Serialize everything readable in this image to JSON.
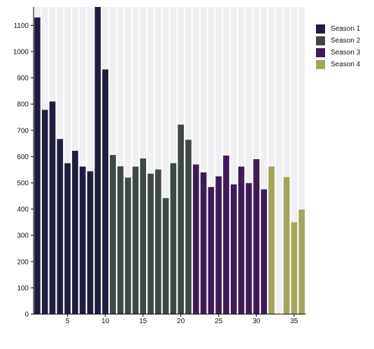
{
  "chart_data": {
    "type": "bar",
    "x": [
      1,
      2,
      3,
      4,
      5,
      6,
      7,
      8,
      9,
      10,
      11,
      12,
      13,
      14,
      15,
      16,
      17,
      18,
      19,
      20,
      21,
      22,
      23,
      24,
      25,
      26,
      27,
      28,
      29,
      30,
      31,
      32,
      33,
      34,
      35,
      36
    ],
    "series": [
      {
        "name": "Season 1",
        "color": "#1f1d40",
        "x": [
          1,
          2,
          3,
          4,
          5,
          6,
          7,
          8,
          9,
          10
        ],
        "values": [
          1130,
          778,
          810,
          667,
          575,
          622,
          562,
          544,
          1170,
          932
        ]
      },
      {
        "name": "Season 2",
        "color": "#3e4946",
        "x": [
          11,
          12,
          13,
          14,
          15,
          16,
          17,
          18,
          19,
          20,
          21
        ],
        "values": [
          606,
          563,
          520,
          562,
          593,
          535,
          551,
          442,
          575,
          722,
          664
        ]
      },
      {
        "name": "Season 3",
        "color": "#3e1b56",
        "x": [
          22,
          23,
          24,
          25,
          26,
          27,
          28,
          29,
          30,
          31
        ],
        "values": [
          570,
          540,
          484,
          525,
          604,
          494,
          562,
          499,
          590,
          475
        ]
      },
      {
        "name": "Season 4",
        "color": "#a3a65a",
        "x": [
          32,
          33,
          34,
          35,
          36
        ],
        "values": [
          562,
          null,
          522,
          350,
          398
        ]
      }
    ],
    "xticks": [
      5,
      10,
      15,
      20,
      25,
      30,
      35
    ],
    "yticks": [
      0,
      100,
      200,
      300,
      400,
      500,
      600,
      700,
      800,
      900,
      1000,
      1100
    ],
    "xlim": [
      0.5,
      36.5
    ],
    "ylim": [
      0,
      1170
    ],
    "background_stripes": true,
    "grid": false,
    "legend_position": "top-right"
  }
}
